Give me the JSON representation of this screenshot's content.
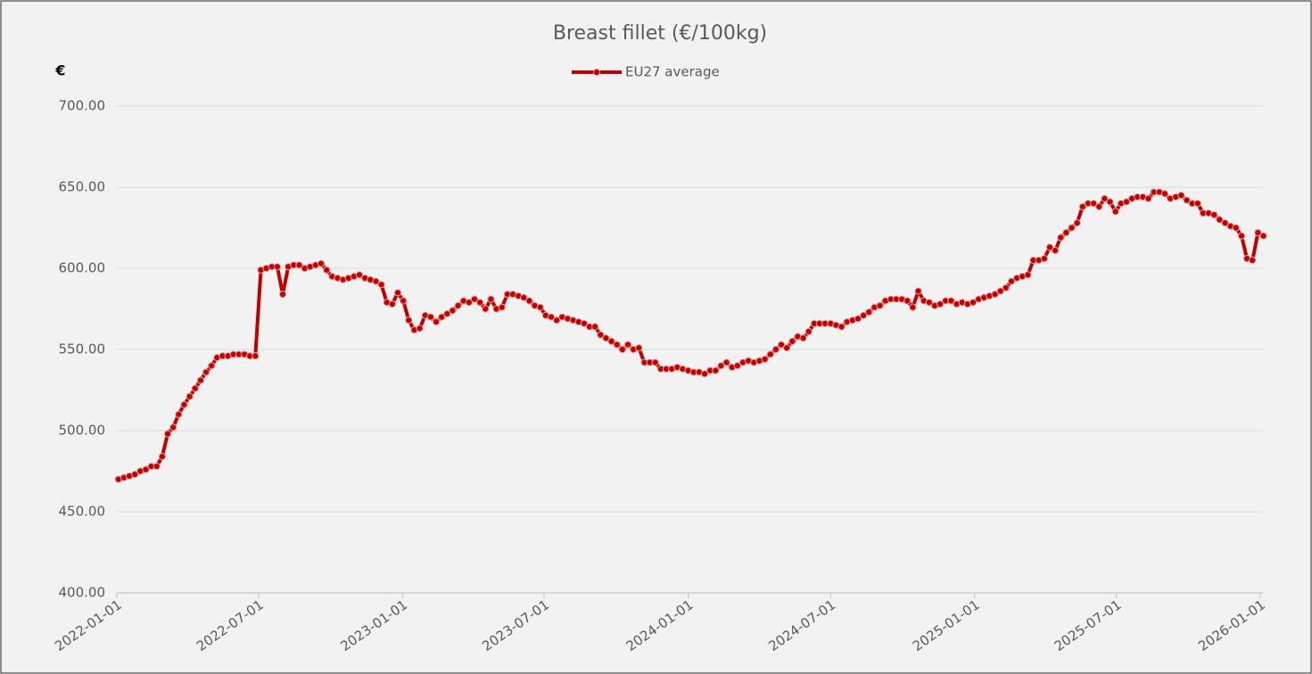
{
  "chart_data": {
    "type": "line",
    "title": "Breast fillet  (€/100kg)",
    "y_label": "€",
    "x": [
      "2022-01-03",
      "2022-01-10",
      "2022-01-17",
      "2022-01-24",
      "2022-01-31",
      "2022-02-07",
      "2022-02-14",
      "2022-02-21",
      "2022-02-28",
      "2022-03-07",
      "2022-03-14",
      "2022-03-21",
      "2022-03-28",
      "2022-04-04",
      "2022-04-11",
      "2022-04-18",
      "2022-04-25",
      "2022-05-02",
      "2022-05-09",
      "2022-05-16",
      "2022-05-23",
      "2022-05-30",
      "2022-06-06",
      "2022-06-13",
      "2022-06-20",
      "2022-06-27",
      "2022-07-04",
      "2022-07-11",
      "2022-07-18",
      "2022-07-25",
      "2022-08-01",
      "2022-08-08",
      "2022-08-15",
      "2022-08-22",
      "2022-08-29",
      "2022-09-05",
      "2022-09-12",
      "2022-09-19",
      "2022-09-26",
      "2022-10-03",
      "2022-10-10",
      "2022-10-17",
      "2022-10-24",
      "2022-10-31",
      "2022-11-07",
      "2022-11-14",
      "2022-11-21",
      "2022-11-28",
      "2022-12-05",
      "2022-12-12",
      "2022-12-19",
      "2022-12-26",
      "2023-01-02",
      "2023-01-09",
      "2023-01-16",
      "2023-01-23",
      "2023-01-30",
      "2023-02-06",
      "2023-02-13",
      "2023-02-20",
      "2023-02-27",
      "2023-03-06",
      "2023-03-13",
      "2023-03-20",
      "2023-03-27",
      "2023-04-03",
      "2023-04-10",
      "2023-04-17",
      "2023-04-24",
      "2023-05-01",
      "2023-05-08",
      "2023-05-15",
      "2023-05-22",
      "2023-05-29",
      "2023-06-05",
      "2023-06-12",
      "2023-06-19",
      "2023-06-26",
      "2023-07-03",
      "2023-07-10",
      "2023-07-17",
      "2023-07-24",
      "2023-07-31",
      "2023-08-07",
      "2023-08-14",
      "2023-08-21",
      "2023-08-28",
      "2023-09-04",
      "2023-09-11",
      "2023-09-18",
      "2023-09-25",
      "2023-10-02",
      "2023-10-09",
      "2023-10-16",
      "2023-10-23",
      "2023-10-30",
      "2023-11-06",
      "2023-11-13",
      "2023-11-20",
      "2023-11-27",
      "2023-12-04",
      "2023-12-11",
      "2023-12-18",
      "2023-12-25",
      "2024-01-01",
      "2024-01-08",
      "2024-01-15",
      "2024-01-22",
      "2024-01-29",
      "2024-02-05",
      "2024-02-12",
      "2024-02-19",
      "2024-02-26",
      "2024-03-04",
      "2024-03-11",
      "2024-03-18",
      "2024-03-25",
      "2024-04-01",
      "2024-04-08",
      "2024-04-15",
      "2024-04-22",
      "2024-04-29",
      "2024-05-06",
      "2024-05-13",
      "2024-05-20",
      "2024-05-27",
      "2024-06-03",
      "2024-06-10",
      "2024-06-17",
      "2024-06-24",
      "2024-07-01",
      "2024-07-08",
      "2024-07-15",
      "2024-07-22",
      "2024-07-29",
      "2024-08-05",
      "2024-08-12",
      "2024-08-19",
      "2024-08-26",
      "2024-09-02",
      "2024-09-09",
      "2024-09-16",
      "2024-09-23",
      "2024-09-30",
      "2024-10-07",
      "2024-10-14",
      "2024-10-21",
      "2024-10-28",
      "2024-11-04",
      "2024-11-11",
      "2024-11-18",
      "2024-11-25",
      "2024-12-02",
      "2024-12-09",
      "2024-12-16",
      "2024-12-23",
      "2024-12-30",
      "2025-01-06",
      "2025-01-13",
      "2025-01-20",
      "2025-01-27",
      "2025-02-03",
      "2025-02-10",
      "2025-02-17",
      "2025-02-24",
      "2025-03-03",
      "2025-03-10",
      "2025-03-17",
      "2025-03-24",
      "2025-03-31",
      "2025-04-07",
      "2025-04-14",
      "2025-04-21",
      "2025-04-28",
      "2025-05-05",
      "2025-05-12",
      "2025-05-19",
      "2025-05-26",
      "2025-06-02",
      "2025-06-09",
      "2025-06-16",
      "2025-06-23",
      "2025-06-30",
      "2025-07-07",
      "2025-07-14",
      "2025-07-21",
      "2025-07-28",
      "2025-08-04",
      "2025-08-11",
      "2025-08-18",
      "2025-08-25",
      "2025-09-01",
      "2025-09-08",
      "2025-09-15",
      "2025-09-22",
      "2025-09-29",
      "2025-10-06",
      "2025-10-13",
      "2025-10-20",
      "2025-10-27",
      "2025-11-03",
      "2025-11-10",
      "2025-11-17",
      "2025-11-24",
      "2025-12-01",
      "2025-12-08",
      "2025-12-15",
      "2025-12-22",
      "2025-12-29",
      "2026-01-05"
    ],
    "series": [
      {
        "name": "EU27 average",
        "color": "#c00000",
        "values": [
          470,
          471,
          472,
          473,
          475,
          476,
          478,
          478,
          484,
          498,
          502,
          510,
          516,
          521,
          526,
          531,
          536,
          540,
          545,
          546,
          546,
          547,
          547,
          547,
          546,
          546,
          599,
          600,
          601,
          601,
          584,
          601,
          602,
          602,
          600,
          601,
          602,
          603,
          599,
          595,
          594,
          593,
          594,
          595,
          596,
          594,
          593,
          592,
          590,
          579,
          578,
          585,
          580,
          568,
          562,
          563,
          571,
          570,
          567,
          570,
          572,
          574,
          577,
          580,
          579,
          581,
          579,
          575,
          581,
          575,
          576,
          584,
          584,
          583,
          582,
          580,
          577,
          576,
          571,
          570,
          568,
          570,
          569,
          568,
          567,
          566,
          564,
          564,
          559,
          557,
          555,
          553,
          550,
          553,
          550,
          551,
          542,
          542,
          542,
          538,
          538,
          538,
          539,
          538,
          537,
          536,
          536,
          535,
          537,
          537,
          540,
          542,
          539,
          540,
          542,
          543,
          542,
          543,
          544,
          547,
          550,
          553,
          551,
          555,
          558,
          557,
          561,
          566,
          566,
          566,
          566,
          565,
          564,
          567,
          568,
          569,
          571,
          573,
          576,
          577,
          580,
          581,
          581,
          581,
          580,
          576,
          586,
          580,
          579,
          577,
          578,
          580,
          580,
          578,
          579,
          578,
          579,
          581,
          582,
          583,
          584,
          586,
          588,
          592,
          594,
          595,
          596,
          605,
          605,
          606,
          613,
          611,
          619,
          622,
          625,
          628,
          638,
          640,
          640,
          638,
          643,
          641,
          635,
          640,
          641,
          643,
          644,
          644,
          643,
          647,
          647,
          646,
          643,
          644,
          645,
          642,
          640,
          640,
          634,
          634,
          633,
          630,
          628,
          626,
          625,
          620,
          606,
          605,
          622,
          620
        ]
      }
    ],
    "xlim": [
      "2022-01-01",
      "2026-01-05"
    ],
    "xticks": [
      "2022-01-01",
      "2022-07-01",
      "2023-01-01",
      "2023-07-01",
      "2024-01-01",
      "2024-07-01",
      "2025-01-01",
      "2025-07-01",
      "2026-01-01"
    ],
    "ylim": [
      400,
      700
    ],
    "yticks": [
      {
        "value": 400,
        "label": "400.00"
      },
      {
        "value": 450,
        "label": "450.00"
      },
      {
        "value": 500,
        "label": "500.00"
      },
      {
        "value": 550,
        "label": "550.00"
      },
      {
        "value": 600,
        "label": "600.00"
      },
      {
        "value": 650,
        "label": "650.00"
      },
      {
        "value": 700,
        "label": "700.00"
      }
    ],
    "grid": true,
    "legend": "top"
  }
}
